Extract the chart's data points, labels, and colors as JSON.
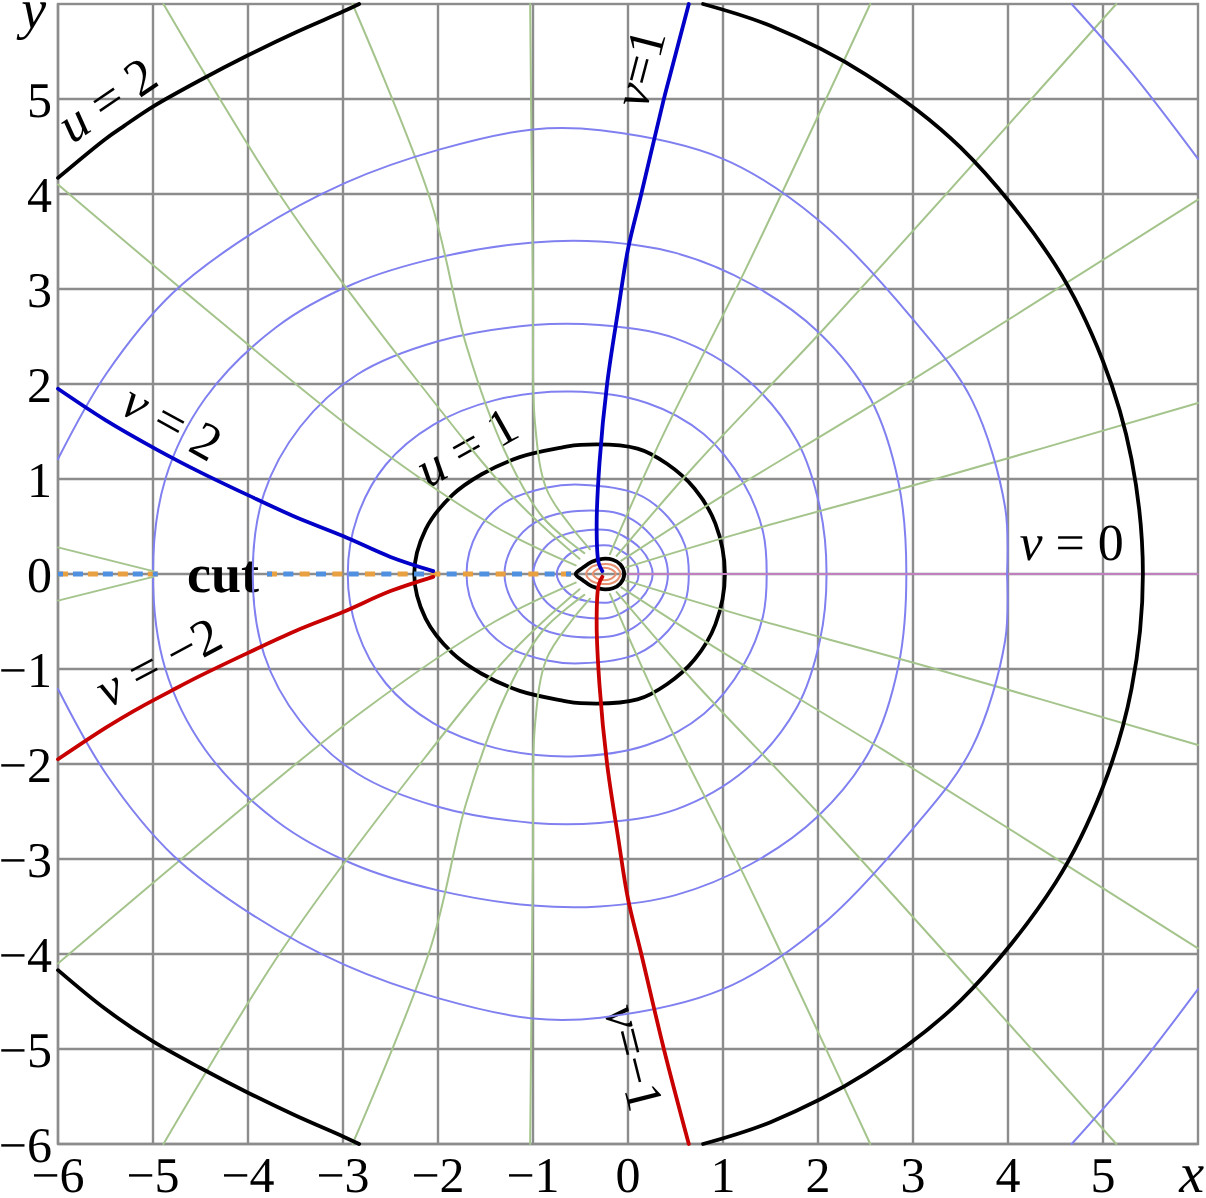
{
  "chart_data": {
    "type": "line",
    "xlabel": "x",
    "ylabel": "y",
    "xlim": [
      -6,
      6
    ],
    "ylim": [
      -6,
      6
    ],
    "xticks": [
      -6,
      -5,
      -4,
      -3,
      -2,
      -1,
      0,
      1,
      2,
      3,
      4,
      5
    ],
    "yticks": [
      -6,
      -5,
      -4,
      -3,
      -2,
      -1,
      0,
      1,
      2,
      3,
      4,
      5
    ],
    "grid": true,
    "series": [
      {
        "color": "#e8a040",
        "line_style": "dotted",
        "x": [
          -6,
          -4.95
        ],
        "values": [
          0,
          0
        ]
      },
      {
        "color": "#5090e0",
        "line_style": "dotted",
        "x": [
          -6,
          -4.95
        ],
        "values": [
          0,
          0
        ]
      },
      {
        "name": "cut",
        "color": "#e8a040",
        "line_style": "dotted",
        "x": [
          -3.8,
          -0.6
        ],
        "values": [
          0,
          0
        ]
      },
      {
        "color": "#5090e0",
        "line_style": "dotted",
        "x": [
          -3.8,
          -0.6
        ],
        "values": [
          0,
          0
        ]
      },
      {
        "color": "#c080c0",
        "x": [
          0,
          4.67,
          6
        ],
        "values": [
          0,
          0,
          0
        ]
      },
      {
        "color": "#a4c48c",
        "x": [
          -5,
          -6
        ],
        "values": [
          0.03,
          0.28
        ]
      },
      {
        "color": "#a4c48c",
        "x": [
          -5,
          -6
        ],
        "values": [
          -0.03,
          -0.28
        ]
      },
      {
        "color": "#a4c48c",
        "x": [
          -0.02,
          1.18,
          3.1,
          6
        ],
        "values": [
          0.07,
          0.43,
          0.96,
          1.8
        ]
      },
      {
        "color": "#a4c48c",
        "x": [
          -0.02,
          1.18,
          3.1,
          6
        ],
        "values": [
          -0.07,
          -0.43,
          -0.96,
          -1.8
        ]
      },
      {
        "color": "#a4c48c",
        "x": [
          -0.07,
          0.99,
          2.7,
          6
        ],
        "values": [
          0.14,
          0.82,
          1.86,
          3.94
        ]
      },
      {
        "color": "#a4c48c",
        "x": [
          -0.07,
          0.99,
          2.7,
          6
        ],
        "values": [
          -0.14,
          -0.82,
          -1.86,
          -3.94
        ]
      },
      {
        "color": "#a4c48c",
        "x": [
          -0.12,
          0.71,
          2.08,
          5.14
        ],
        "values": [
          0.19,
          1.15,
          2.6,
          6
        ]
      },
      {
        "color": "#a4c48c",
        "x": [
          -0.12,
          0.71,
          2.08,
          5.14
        ],
        "values": [
          -0.19,
          -1.15,
          -2.6,
          -6
        ]
      },
      {
        "color": "#a4c48c",
        "x": [
          -0.19,
          0.33,
          1.22,
          2.55
        ],
        "values": [
          0.21,
          1.38,
          3.17,
          6
        ]
      },
      {
        "color": "#a4c48c",
        "x": [
          -0.19,
          0.33,
          1.22,
          2.55
        ],
        "values": [
          -0.21,
          -1.38,
          -3.17,
          -6
        ]
      },
      {
        "color": "#a4c48c",
        "x": [
          -0.4,
          -0.6,
          -0.86,
          -0.98,
          -1.0,
          -1.03
        ],
        "values": [
          0.26,
          0.5,
          0.9,
          1.6,
          3.0,
          6
        ]
      },
      {
        "color": "#a4c48c",
        "x": [
          -0.4,
          -0.6,
          -0.86,
          -0.98,
          -1.0,
          -1.03
        ],
        "values": [
          -0.26,
          -0.5,
          -0.9,
          -1.6,
          -3.0,
          -6
        ]
      },
      {
        "color": "#a4c48c",
        "x": [
          -0.46,
          -0.9,
          -1.3,
          -1.7,
          -2.08,
          -2.9
        ],
        "values": [
          0.22,
          0.6,
          1.3,
          2.4,
          3.94,
          6
        ]
      },
      {
        "color": "#a4c48c",
        "x": [
          -0.46,
          -0.9,
          -1.3,
          -1.7,
          -2.08,
          -2.9
        ],
        "values": [
          -0.22,
          -0.6,
          -1.3,
          -2.4,
          -3.94,
          -6
        ]
      },
      {
        "color": "#a4c48c",
        "x": [
          -0.51,
          -1.2,
          -2.19,
          -3.63,
          -4.89
        ],
        "values": [
          0.16,
          0.8,
          2.0,
          3.94,
          6
        ]
      },
      {
        "color": "#a4c48c",
        "x": [
          -0.51,
          -1.2,
          -2.19,
          -3.63,
          -4.89
        ],
        "values": [
          -0.16,
          -0.8,
          -2.0,
          -3.94,
          -6
        ]
      },
      {
        "color": "#a4c48c",
        "x": [
          -0.55,
          -1.4,
          -2.8,
          -4.4,
          -6
        ],
        "values": [
          0.09,
          0.5,
          1.45,
          2.75,
          4.1
        ]
      },
      {
        "color": "#a4c48c",
        "x": [
          -0.55,
          -1.4,
          -2.8,
          -4.4,
          -6
        ],
        "values": [
          -0.09,
          -0.5,
          -1.45,
          -2.75,
          -4.1
        ]
      },
      {
        "color": "#8080f0",
        "x": [
          -6,
          -5.49,
          -4.79,
          -3.95,
          -2.97,
          -1.98,
          -1.0,
          -0.29,
          1.0,
          2.0,
          3.0,
          3.62,
          3.97,
          3.99
        ],
        "values": [
          1.21,
          2.11,
          2.96,
          3.59,
          4.12,
          4.47,
          4.68,
          4.67,
          4.37,
          3.73,
          2.68,
          1.83,
          0.7,
          0
        ]
      },
      {
        "color": "#8080f0",
        "x": [
          -6,
          -5.49,
          -4.79,
          -3.95,
          -2.97,
          -1.98,
          -1.0,
          -0.29,
          1.0,
          2.0,
          3.0,
          3.62,
          3.97,
          3.99
        ],
        "values": [
          -1.21,
          -2.11,
          -2.96,
          -3.59,
          -4.12,
          -4.47,
          -4.68,
          -4.67,
          -4.37,
          -3.73,
          -2.68,
          -1.83,
          -0.7,
          0
        ]
      },
      {
        "color": "#8080f0",
        "x": [
          4.67,
          5.3,
          6
        ],
        "values": [
          6,
          5.28,
          4.37
        ]
      },
      {
        "color": "#8080f0",
        "x": [
          4.67,
          5.3,
          6
        ],
        "values": [
          -6,
          -5.28,
          -4.37
        ]
      },
      {
        "color": "#000000",
        "x": [
          -6,
          -5.5,
          -5.3,
          -5,
          -4.5,
          -4,
          -3.5,
          -3,
          -2.83
        ],
        "values": [
          4.17,
          4.58,
          4.72,
          4.92,
          5.2,
          5.46,
          5.7,
          5.92,
          6
        ]
      },
      {
        "color": "#000000",
        "x": [
          0.79,
          1.5,
          2.5,
          3.5,
          4.5,
          5,
          5.3,
          5.42,
          5.3,
          5,
          4.5,
          3.5,
          2.5,
          1.5,
          0.79
        ],
        "values": [
          6,
          5.77,
          5.26,
          4.49,
          3.25,
          2.24,
          1.21,
          0,
          -1.21,
          -2.24,
          -3.25,
          -4.49,
          -5.26,
          -5.77,
          -6
        ]
      },
      {
        "color": "#000000",
        "x": [
          -6,
          -5.5,
          -5,
          -4.5,
          -4,
          -3.5,
          -3,
          -2.83
        ],
        "values": [
          -4.17,
          -4.58,
          -4.92,
          -5.2,
          -5.46,
          -5.7,
          -5.92,
          -6
        ]
      },
      {
        "color": "#0000c8",
        "x": [
          -0.27,
          -0.31,
          -0.33,
          -0.3,
          -0.22,
          -0.1,
          0.0,
          0.14,
          0.37,
          0.44,
          0.64
        ],
        "values": [
          0.03,
          0.12,
          0.5,
          1.17,
          2.0,
          2.8,
          3.42,
          4.0,
          4.97,
          5.24,
          6
        ]
      },
      {
        "color": "#0000c8",
        "x": [
          -2.05,
          -2.5,
          -3,
          -3.5,
          -4,
          -4.5,
          -4.96,
          -5.5,
          -6
        ],
        "values": [
          0.03,
          0.18,
          0.4,
          0.6,
          0.83,
          1.07,
          1.31,
          1.62,
          1.95
        ]
      },
      {
        "color": "#c80000",
        "x": [
          -0.27,
          -0.31,
          -0.33,
          -0.3,
          -0.22,
          -0.1,
          0.0,
          0.14,
          0.38,
          0.64
        ],
        "values": [
          -0.03,
          -0.12,
          -0.5,
          -1.17,
          -2.0,
          -2.8,
          -3.42,
          -4.0,
          -5.01,
          -6
        ]
      },
      {
        "color": "#c80000",
        "x": [
          -2.05,
          -2.5,
          -3,
          -3.5,
          -4,
          -4.5,
          -4.79,
          -5.2,
          -5.5,
          -6
        ],
        "values": [
          -0.03,
          -0.18,
          -0.4,
          -0.6,
          -0.83,
          -1.07,
          -1.22,
          -1.44,
          -1.62,
          -1.95
        ]
      }
    ],
    "annotations": [
      {
        "text": "u = 2",
        "x": -5.3,
        "y": 4.72
      },
      {
        "text": "v = 2",
        "x": -4.96,
        "y": 1.31
      },
      {
        "text": "u = 1",
        "x": -1.54,
        "y": 1.05
      },
      {
        "text": "v=1",
        "x": 0.44,
        "y": 5.24
      },
      {
        "text": "v = 0",
        "x": 4.67,
        "y": 0
      },
      {
        "text": "v = −2",
        "x": -4.79,
        "y": -1.22
      },
      {
        "text": "v=−1",
        "x": 0.38,
        "y": -5.01
      }
    ]
  }
}
